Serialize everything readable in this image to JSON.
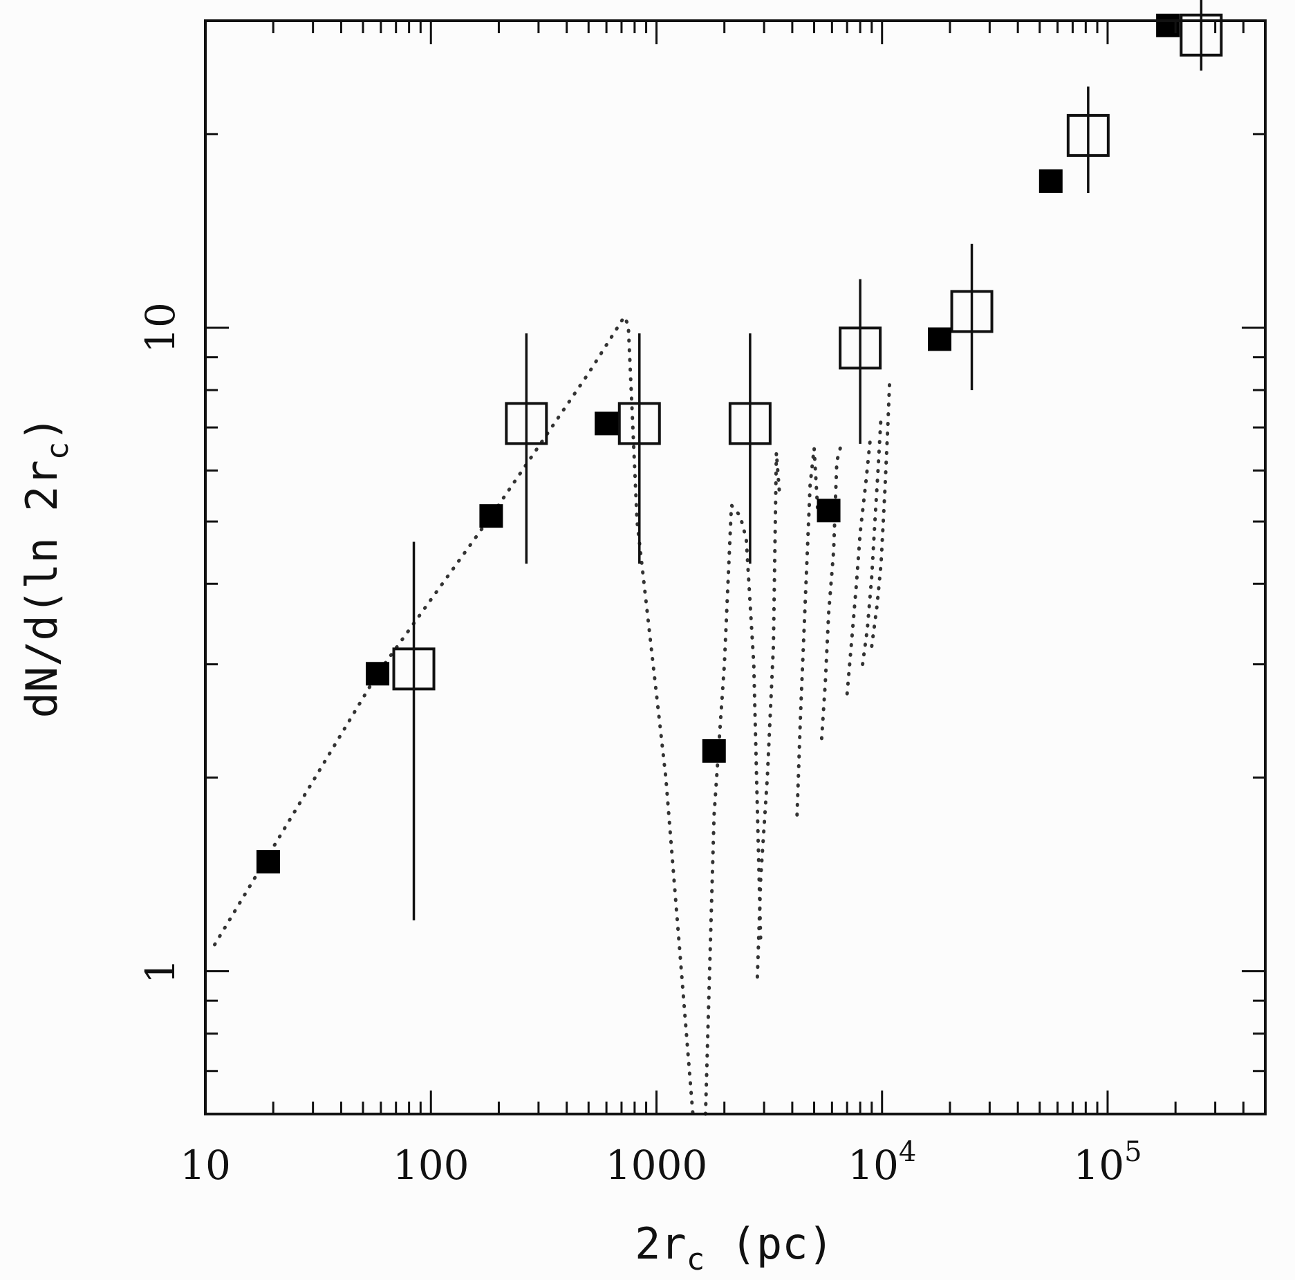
{
  "chart_data": {
    "type": "scatter",
    "title": "",
    "xlabel": "2r",
    "xlabel_subscript": "c",
    "xlabel_suffix": " (pc)",
    "ylabel": "dN/d(ln 2r",
    "ylabel_subscript": "c",
    "ylabel_suffix": ")",
    "xscale": "log",
    "yscale": "log",
    "xlim": [
      10,
      500000
    ],
    "ylim": [
      0.6,
      30
    ],
    "x_tick_labels": [
      {
        "value": 10,
        "base": "10",
        "exp": ""
      },
      {
        "value": 100,
        "base": "100",
        "exp": ""
      },
      {
        "value": 1000,
        "base": "1000",
        "exp": ""
      },
      {
        "value": 10000,
        "base": "10",
        "exp": "4"
      },
      {
        "value": 100000,
        "base": "10",
        "exp": "5"
      }
    ],
    "y_tick_labels": [
      {
        "value": 1,
        "label": "1"
      },
      {
        "value": 10,
        "label": "10"
      }
    ],
    "series": [
      {
        "name": "filled squares",
        "marker": "filled-square",
        "points": [
          {
            "x": 19,
            "y": 1.48
          },
          {
            "x": 58,
            "y": 2.9
          },
          {
            "x": 185,
            "y": 5.1
          },
          {
            "x": 600,
            "y": 7.1
          },
          {
            "x": 1800,
            "y": 2.2
          },
          {
            "x": 5800,
            "y": 5.2
          },
          {
            "x": 18000,
            "y": 9.6
          },
          {
            "x": 56000,
            "y": 16.9
          },
          {
            "x": 185000,
            "y": 29.5
          }
        ]
      },
      {
        "name": "open squares",
        "marker": "open-square",
        "points": [
          {
            "x": 84,
            "y": 2.95,
            "ylo": 1.2,
            "yhi": 4.65
          },
          {
            "x": 265,
            "y": 7.1,
            "ylo": 4.3,
            "yhi": 9.8
          },
          {
            "x": 840,
            "y": 7.1,
            "ylo": 4.3,
            "yhi": 9.8
          },
          {
            "x": 2600,
            "y": 7.1,
            "ylo": 4.3,
            "yhi": 9.8
          },
          {
            "x": 8000,
            "y": 9.3,
            "ylo": 6.6,
            "yhi": 11.9
          },
          {
            "x": 25000,
            "y": 10.6,
            "ylo": 8.0,
            "yhi": 13.5
          },
          {
            "x": 82000,
            "y": 19.9,
            "ylo": 16.2,
            "yhi": 23.7
          },
          {
            "x": 260000,
            "y": 28.5,
            "ylo": 25.1,
            "yhi": 32.6
          }
        ]
      }
    ],
    "dotted_curves": [
      [
        [
          11,
          1.1
        ],
        [
          58,
          2.9
        ],
        [
          185,
          5.1
        ],
        [
          500,
          8.5
        ],
        [
          720,
          10.4
        ],
        [
          750,
          10.1
        ],
        [
          820,
          5.0
        ],
        [
          1100,
          2.0
        ],
        [
          1450,
          0.6
        ]
      ],
      [
        [
          1650,
          0.6
        ],
        [
          1800,
          1.75
        ],
        [
          2000,
          3.0
        ],
        [
          2150,
          5.3
        ],
        [
          2350,
          5.1
        ],
        [
          2500,
          4.7
        ],
        [
          2700,
          3.0
        ],
        [
          2900,
          1.1
        ]
      ],
      [
        [
          2800,
          0.98
        ],
        [
          2900,
          1.4
        ],
        [
          3100,
          2.0
        ],
        [
          3300,
          3.2
        ],
        [
          3400,
          6.4
        ],
        [
          3500,
          5.6
        ]
      ],
      [
        [
          4200,
          1.75
        ],
        [
          4350,
          2.5
        ],
        [
          4600,
          4.0
        ],
        [
          4800,
          5.7
        ],
        [
          5000,
          6.5
        ],
        [
          5200,
          5.1
        ]
      ],
      [
        [
          5400,
          2.3
        ],
        [
          5600,
          2.8
        ],
        [
          5800,
          3.6
        ],
        [
          6100,
          4.5
        ],
        [
          6300,
          6.2
        ],
        [
          6600,
          6.6
        ]
      ],
      [
        [
          7000,
          2.7
        ],
        [
          7300,
          3.2
        ],
        [
          7700,
          4.0
        ],
        [
          8000,
          4.8
        ],
        [
          8500,
          5.8
        ],
        [
          8900,
          6.8
        ]
      ],
      [
        [
          8200,
          3.0
        ],
        [
          8600,
          3.4
        ],
        [
          9000,
          4.1
        ],
        [
          9300,
          5.0
        ],
        [
          9600,
          6.0
        ],
        [
          9900,
          7.3
        ]
      ],
      [
        [
          9000,
          3.2
        ],
        [
          9500,
          3.7
        ],
        [
          9900,
          4.3
        ],
        [
          10300,
          5.6
        ],
        [
          10600,
          7.0
        ],
        [
          10800,
          8.2
        ]
      ]
    ]
  }
}
